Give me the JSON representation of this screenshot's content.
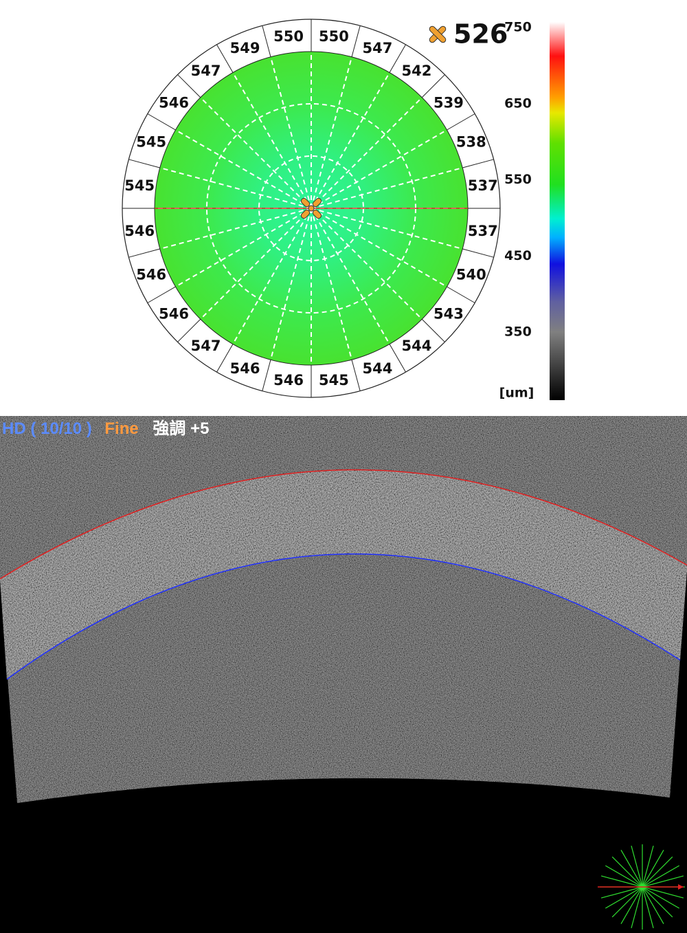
{
  "thickness_map": {
    "center_value": 526,
    "sector_values": [
      550,
      547,
      542,
      539,
      538,
      537,
      537,
      540,
      543,
      544,
      544,
      545,
      546,
      546,
      547,
      546,
      546,
      546,
      545,
      545,
      546,
      547,
      549,
      550
    ],
    "colorbar": {
      "ticks": [
        750,
        650,
        550,
        450,
        350
      ],
      "unit": "[um]"
    }
  },
  "oct_scan": {
    "mode": "HD ( 10/10 )",
    "quality": "Fine",
    "enhance": "強調 +5"
  }
}
